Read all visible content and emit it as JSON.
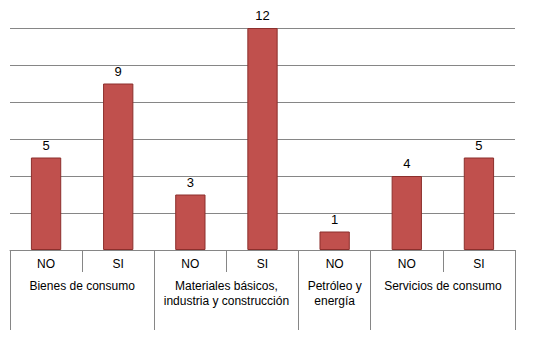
{
  "chart_data": {
    "type": "bar",
    "categories": [
      "NO",
      "SI",
      "NO",
      "SI",
      "NO",
      "NO",
      "SI"
    ],
    "values": [
      5,
      9,
      3,
      12,
      1,
      4,
      5
    ],
    "groups": [
      {
        "label": "Bienes de consumo",
        "count": 2
      },
      {
        "label": "Materiales básicos, industria y construcción",
        "count": 2
      },
      {
        "label": "Petróleo y energía",
        "count": 1
      },
      {
        "label": "Servicios de consumo",
        "count": 2
      }
    ],
    "color": "#c0504d",
    "ylim": [
      0,
      12
    ],
    "yticks": [
      0,
      2,
      4,
      6,
      8,
      10,
      12
    ],
    "grid": true,
    "data_labels": true,
    "tick_labels": "x"
  }
}
